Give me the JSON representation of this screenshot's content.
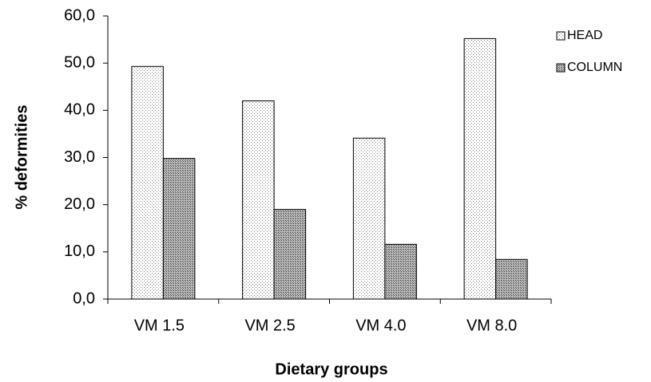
{
  "chart_data": {
    "type": "bar",
    "x_label": "Dietary groups",
    "y_label": "% deformities",
    "categories": [
      "VM 1.5",
      "VM 2.5",
      "VM 4.0",
      "VM 8.0"
    ],
    "series": [
      {
        "name": "HEAD",
        "color": "#7a7a7a",
        "values": [
          49.3,
          42.0,
          34.1,
          55.2
        ]
      },
      {
        "name": "COLUMN",
        "color": "#3a3a3a",
        "values": [
          29.8,
          19.0,
          11.6,
          8.4
        ]
      }
    ],
    "ylim": [
      0,
      60
    ],
    "yticks": [
      {
        "value": 0,
        "label": "0,0"
      },
      {
        "value": 10,
        "label": "10,0"
      },
      {
        "value": 20,
        "label": "20,0"
      },
      {
        "value": 30,
        "label": "30,0"
      },
      {
        "value": 40,
        "label": "40,0"
      },
      {
        "value": 50,
        "label": "50,0"
      },
      {
        "value": 60,
        "label": "60,0"
      }
    ],
    "grid": false,
    "legend": "top-right"
  }
}
